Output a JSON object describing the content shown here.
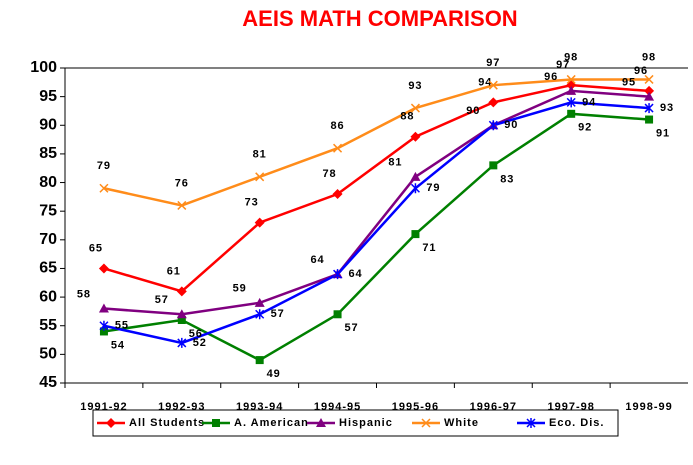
{
  "chart_data": {
    "type": "line",
    "title": "AEIS MATH COMPARISON",
    "categories": [
      "1991-92",
      "1992-93",
      "1993-94",
      "1994-95",
      "1995-96",
      "1996-97",
      "1997-98",
      "1998-99"
    ],
    "series": [
      {
        "name": "All Students",
        "color": "#ff0000",
        "marker": "diamond",
        "values": [
          65,
          61,
          73,
          78,
          88,
          94,
          97,
          96
        ]
      },
      {
        "name": "A. American",
        "color": "#008000",
        "marker": "square",
        "values": [
          54,
          56,
          49,
          57,
          71,
          83,
          92,
          91
        ]
      },
      {
        "name": "Hispanic",
        "color": "#800080",
        "marker": "triangle",
        "values": [
          58,
          57,
          59,
          64,
          81,
          90,
          96,
          95
        ]
      },
      {
        "name": "White",
        "color": "#ff8c1a",
        "marker": "x",
        "values": [
          79,
          76,
          81,
          86,
          93,
          97,
          98,
          98
        ]
      },
      {
        "name": "Eco. Dis.",
        "color": "#0000ff",
        "marker": "asterisk",
        "values": [
          55,
          52,
          57,
          64,
          79,
          90,
          94,
          93
        ]
      }
    ],
    "ylim": [
      45,
      100
    ],
    "yticks": [
      45,
      50,
      55,
      60,
      65,
      70,
      75,
      80,
      85,
      90,
      95,
      100
    ],
    "grid": false,
    "legend": "bottom"
  }
}
